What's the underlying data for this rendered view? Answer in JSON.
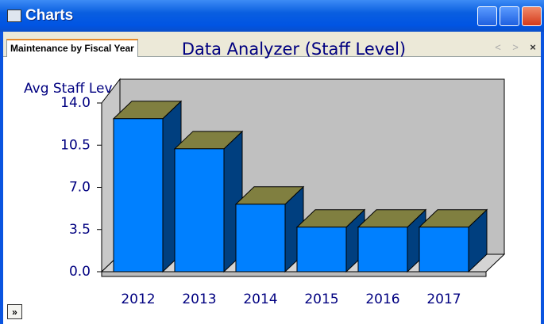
{
  "window": {
    "title": "Charts",
    "tab": "Maintenance by Fiscal Year",
    "expand_button": "»"
  },
  "chart_data": {
    "type": "bar3d",
    "title": "Data Analyzer (Staff Level)",
    "ylabel": "Avg Staff Level",
    "categories": [
      "2012",
      "2013",
      "2014",
      "2015",
      "2016",
      "2017"
    ],
    "values": [
      12.7,
      10.2,
      5.6,
      3.7,
      3.7,
      3.7
    ],
    "color": "#0080ff",
    "ylim": [
      0,
      14
    ],
    "yticks": [
      {
        "value": 0,
        "label": "0.0"
      },
      {
        "value": 3.5,
        "label": "3.5"
      },
      {
        "value": 7,
        "label": "7.0"
      },
      {
        "value": 10.5,
        "label": "10.5"
      },
      {
        "value": 14,
        "label": "14.0"
      }
    ]
  }
}
